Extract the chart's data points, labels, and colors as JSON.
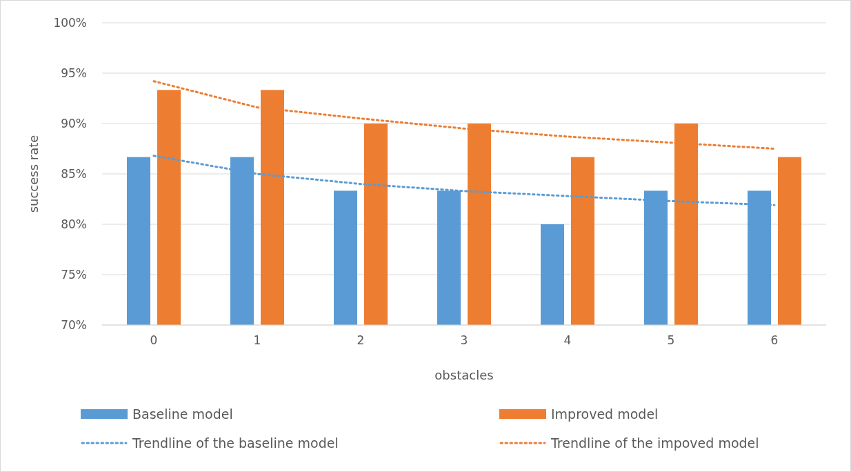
{
  "chart_data": {
    "type": "bar",
    "xlabel": "obstacles",
    "ylabel": "success rate",
    "categories": [
      "0",
      "1",
      "2",
      "3",
      "4",
      "5",
      "6"
    ],
    "series": [
      {
        "name": "Baseline model",
        "color": "#5b9bd5",
        "values": [
          86.67,
          86.67,
          83.33,
          83.33,
          80,
          83.33,
          83.33
        ]
      },
      {
        "name": "Improved model",
        "color": "#ed7d31",
        "values": [
          93.33,
          93.33,
          90,
          90,
          86.67,
          90,
          86.67
        ]
      },
      {
        "name": "Trendline of the baseline model",
        "type": "line",
        "line_style": "dotted",
        "color": "#5b9bd5",
        "values": [
          86.8,
          85.0,
          84.0,
          83.3,
          82.8,
          82.3,
          81.9
        ]
      },
      {
        "name": "Trendline of the impoved model",
        "type": "line",
        "line_style": "dotted",
        "color": "#ed7d31",
        "values": [
          94.2,
          91.6,
          90.5,
          89.5,
          88.7,
          88.1,
          87.5
        ]
      }
    ],
    "ylim": [
      70,
      100
    ],
    "yticks": [
      {
        "value": 70,
        "label": "70%"
      },
      {
        "value": 75,
        "label": "75%"
      },
      {
        "value": 80,
        "label": "80%"
      },
      {
        "value": 85,
        "label": "85%"
      },
      {
        "value": 90,
        "label": "90%"
      },
      {
        "value": 95,
        "label": "95%"
      },
      {
        "value": 100,
        "label": "100%"
      }
    ],
    "grid": "y",
    "legend": "bottom"
  }
}
